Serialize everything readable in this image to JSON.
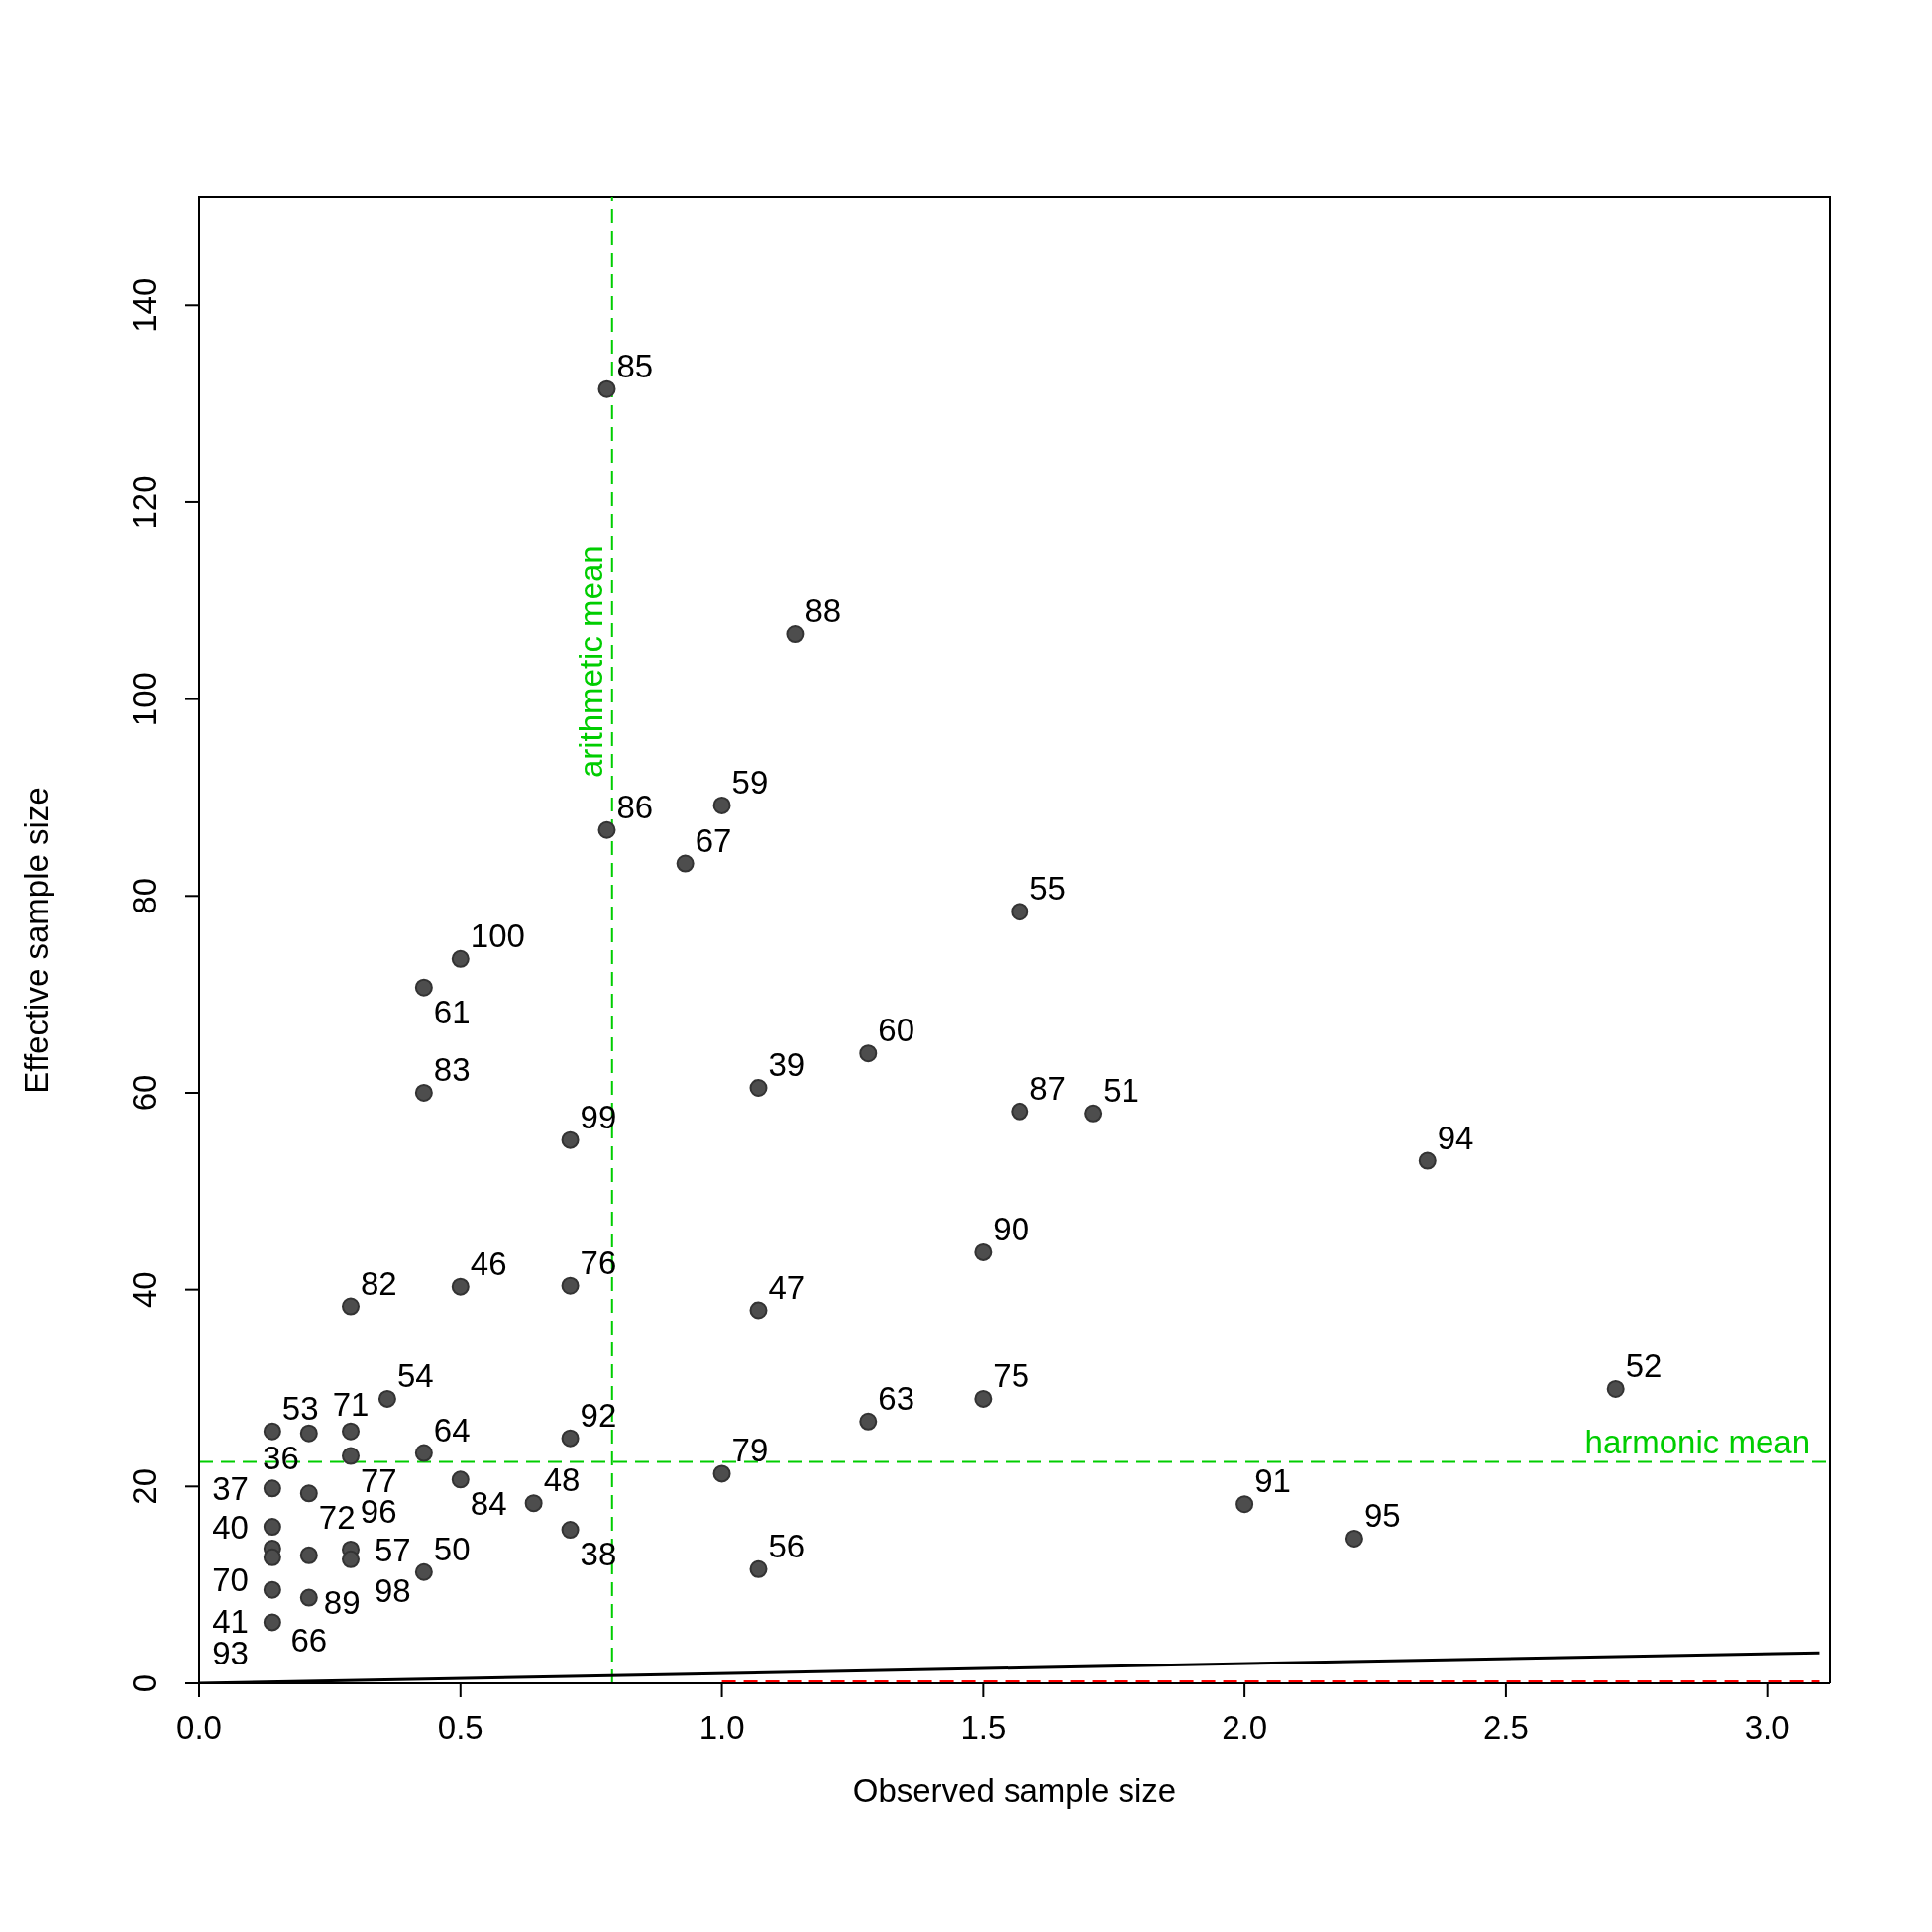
{
  "chart_data": {
    "type": "scatter",
    "xlabel": "Observed sample size",
    "ylabel": "Effective sample size",
    "xlim": [
      0,
      3.12
    ],
    "ylim": [
      0,
      151
    ],
    "xticks": [
      {
        "value": 0,
        "label": "0.0"
      },
      0.5,
      {
        "value": 1,
        "label": "1.0"
      },
      1.5,
      {
        "value": 2,
        "label": "2.0"
      },
      2.5,
      {
        "value": 3,
        "label": "3.0"
      }
    ],
    "yticks": [
      0,
      20,
      40,
      60,
      80,
      100,
      120,
      140
    ],
    "series": [
      {
        "color": "#4d4d4d",
        "marker": "circle",
        "x": [
          0.78,
          1.14,
          1.0,
          0.78,
          0.93,
          1.57,
          0.5,
          0.43,
          1.28,
          1.07,
          0.43,
          1.57,
          1.71,
          0.71,
          2.35,
          1.5,
          0.71,
          0.5,
          0.29,
          1.07,
          2.71,
          0.36,
          1.5,
          1.28,
          0.71,
          0.14,
          0.21,
          0.29,
          0.29,
          0.43,
          1.0,
          0.5,
          0.14,
          0.21,
          0.64,
          2.0,
          0.14,
          0.71,
          2.21,
          0.14,
          0.14,
          0.21,
          0.29,
          0.29,
          0.43,
          1.07,
          0.14,
          0.21,
          0.14
        ],
        "values": [
          131.5,
          106.6,
          89.2,
          86.7,
          83.3,
          78.4,
          73.6,
          70.7,
          64.0,
          60.5,
          60.0,
          58.1,
          57.9,
          55.2,
          53.1,
          43.8,
          40.4,
          40.3,
          38.3,
          37.9,
          29.9,
          28.9,
          28.9,
          26.6,
          24.9,
          25.6,
          25.4,
          25.6,
          23.1,
          23.4,
          21.3,
          20.7,
          19.8,
          19.3,
          18.3,
          18.2,
          15.9,
          15.6,
          14.7,
          13.7,
          12.8,
          13.0,
          13.6,
          12.6,
          11.3,
          11.6,
          9.5,
          8.7,
          6.2
        ]
      },
      {
        "type": "line",
        "color": "#000000",
        "line_style": "solid",
        "x": [
          0,
          3.1
        ],
        "values": [
          0,
          3.1
        ]
      },
      {
        "type": "line",
        "color": "#ff0000",
        "line_style": "dashed",
        "x": [
          1,
          3.1
        ],
        "values": [
          0,
          0
        ]
      }
    ],
    "annotations": [
      {
        "text": "85",
        "x": 0.78,
        "y": 131.5
      },
      {
        "text": "88",
        "x": 1.14,
        "y": 106.6
      },
      {
        "text": "59",
        "x": 1.0,
        "y": 89.2
      },
      {
        "text": "86",
        "x": 0.78,
        "y": 86.7
      },
      {
        "text": "67",
        "x": 0.93,
        "y": 83.3
      },
      {
        "text": "55",
        "x": 1.57,
        "y": 78.4
      },
      {
        "text": "100",
        "x": 0.5,
        "y": 73.6
      },
      {
        "text": "61",
        "x": 0.43,
        "y": 70.7
      },
      {
        "text": "60",
        "x": 1.28,
        "y": 64.0
      },
      {
        "text": "39",
        "x": 1.07,
        "y": 60.5
      },
      {
        "text": "83",
        "x": 0.43,
        "y": 60.0
      },
      {
        "text": "87",
        "x": 1.57,
        "y": 58.1
      },
      {
        "text": "51",
        "x": 1.71,
        "y": 57.9
      },
      {
        "text": "99",
        "x": 0.71,
        "y": 55.2
      },
      {
        "text": "94",
        "x": 2.35,
        "y": 53.1
      },
      {
        "text": "90",
        "x": 1.5,
        "y": 43.8
      },
      {
        "text": "76",
        "x": 0.71,
        "y": 40.4
      },
      {
        "text": "46",
        "x": 0.5,
        "y": 40.3
      },
      {
        "text": "82",
        "x": 0.29,
        "y": 38.3
      },
      {
        "text": "47",
        "x": 1.07,
        "y": 37.9
      },
      {
        "text": "52",
        "x": 2.71,
        "y": 29.9
      },
      {
        "text": "54",
        "x": 0.36,
        "y": 28.9
      },
      {
        "text": "75",
        "x": 1.5,
        "y": 28.9
      },
      {
        "text": "63",
        "x": 1.28,
        "y": 26.6
      },
      {
        "text": "92",
        "x": 0.71,
        "y": 24.9
      },
      {
        "text": "53",
        "x": 0.14,
        "y": 25.6
      },
      {
        "text": "36",
        "x": 0.21,
        "y": 25.4
      },
      {
        "text": "71",
        "x": 0.29,
        "y": 25.6
      },
      {
        "text": "77",
        "x": 0.29,
        "y": 23.1
      },
      {
        "text": "64",
        "x": 0.43,
        "y": 23.4
      },
      {
        "text": "79",
        "x": 1.0,
        "y": 21.3
      },
      {
        "text": "84",
        "x": 0.5,
        "y": 20.7
      },
      {
        "text": "37",
        "x": 0.14,
        "y": 19.8
      },
      {
        "text": "72",
        "x": 0.21,
        "y": 19.3
      },
      {
        "text": "48",
        "x": 0.64,
        "y": 18.3
      },
      {
        "text": "91",
        "x": 2.0,
        "y": 18.2
      },
      {
        "text": "40",
        "x": 0.14,
        "y": 15.9
      },
      {
        "text": "38",
        "x": 0.71,
        "y": 15.6
      },
      {
        "text": "95",
        "x": 2.21,
        "y": 14.7
      },
      {
        "text": "70",
        "x": 0.14,
        "y": 13.7
      },
      {
        "text": "89",
        "x": 0.14,
        "y": 12.8
      },
      {
        "text": "96",
        "x": 0.21,
        "y": 13.0
      },
      {
        "text": "57",
        "x": 0.29,
        "y": 13.6
      },
      {
        "text": "98",
        "x": 0.29,
        "y": 12.6
      },
      {
        "text": "50",
        "x": 0.43,
        "y": 11.3
      },
      {
        "text": "56",
        "x": 1.07,
        "y": 11.6
      },
      {
        "text": "41",
        "x": 0.14,
        "y": 9.5
      },
      {
        "text": "66",
        "x": 0.21,
        "y": 8.7
      },
      {
        "text": "93",
        "x": 0.14,
        "y": 6.2
      }
    ],
    "ref_lines": [
      {
        "axis": "y",
        "value": 22.5,
        "label": "harmonic mean",
        "color": "#00cd00",
        "line_style": "dashed"
      },
      {
        "axis": "x",
        "value": 0.79,
        "label": "arithmetic mean",
        "color": "#00cd00",
        "line_style": "dashed"
      }
    ]
  }
}
